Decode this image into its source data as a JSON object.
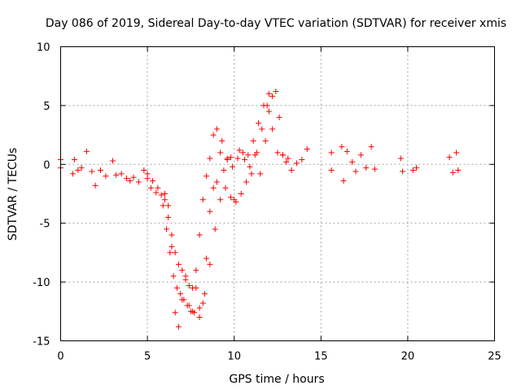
{
  "chart_data": {
    "type": "scatter",
    "title": "Day 086 of 2019, Sidereal Day-to-day VTEC variation (SDTVAR) for receiver xmis",
    "xlabel": "GPS time / hours",
    "ylabel": "SDTVAR / TECUs",
    "xlim": [
      0,
      25
    ],
    "ylim": [
      -15,
      10
    ],
    "xticks": [
      0,
      5,
      10,
      15,
      20,
      25
    ],
    "yticks": [
      10,
      5,
      0,
      -5,
      -10,
      -15
    ],
    "grid": true,
    "marker": "+",
    "colors": {
      "series": "#ff0000",
      "grid": "#a0a0a0",
      "frame": "#000000"
    },
    "series": [
      {
        "name": "SDTVAR",
        "x": [
          0.0,
          0.0,
          0.7,
          0.8,
          1.0,
          1.2,
          1.5,
          1.8,
          2.0,
          2.3,
          2.6,
          3.0,
          3.2,
          3.5,
          3.8,
          4.0,
          4.2,
          4.5,
          4.8,
          5.0,
          5.2,
          5.5,
          5.8,
          6.0,
          6.2,
          6.4,
          6.6,
          6.8,
          7.0,
          7.2,
          7.4,
          7.6,
          7.8,
          8.0,
          8.2,
          8.4,
          8.6,
          8.8,
          9.0,
          9.2,
          9.4,
          9.6,
          9.8,
          10.0,
          10.3,
          10.6,
          10.9,
          11.2,
          11.5,
          11.8,
          12.0,
          12.2,
          12.4,
          12.6,
          12.8,
          13.0,
          13.3,
          13.6,
          13.9,
          14.2,
          15.6,
          15.6,
          16.2,
          16.3,
          16.5,
          16.8,
          17.0,
          17.3,
          17.6,
          17.9,
          18.1,
          19.6,
          19.7,
          20.3,
          20.5,
          22.4,
          22.6,
          22.8,
          22.9,
          5.0,
          5.3,
          5.6,
          5.9,
          6.1,
          6.3,
          6.5,
          6.7,
          6.9,
          7.1,
          7.3,
          7.5,
          7.7,
          8.0,
          8.3,
          8.6,
          8.9,
          9.2,
          9.5,
          9.8,
          10.1,
          10.4,
          10.7,
          11.0,
          11.3,
          11.6,
          11.9,
          12.2,
          12.5,
          12.8,
          13.1,
          6.0,
          6.2,
          6.4,
          6.6,
          6.8,
          7.0,
          7.2,
          7.4,
          7.6,
          7.8,
          8.0,
          8.2,
          8.4,
          8.6,
          8.8,
          9.0,
          9.3,
          9.6,
          9.9,
          10.2,
          10.5,
          10.8,
          11.1,
          11.4,
          11.7,
          12.0
        ],
        "y": [
          0.4,
          -0.3,
          -0.8,
          0.4,
          -0.5,
          -0.3,
          1.1,
          -0.6,
          -1.8,
          -0.5,
          -1.0,
          0.3,
          -0.9,
          -0.8,
          -1.2,
          -1.4,
          -1.1,
          -1.5,
          -0.5,
          -0.8,
          -2.0,
          -2.4,
          -2.6,
          -3.0,
          -3.5,
          -7.0,
          -12.6,
          -13.8,
          -11.5,
          -9.5,
          -12.0,
          -12.5,
          -10.5,
          -13.0,
          -11.8,
          -8.0,
          -4.0,
          -2.0,
          -1.5,
          1.0,
          -0.5,
          0.4,
          0.6,
          -3.0,
          1.2,
          0.4,
          -0.2,
          0.8,
          -0.8,
          2.0,
          4.5,
          5.8,
          6.2,
          4.0,
          0.8,
          0.2,
          -0.5,
          0.1,
          0.4,
          1.3,
          1.0,
          -0.5,
          1.5,
          -1.4,
          1.1,
          0.2,
          -0.6,
          0.8,
          -0.3,
          1.5,
          -0.4,
          0.5,
          -0.6,
          -0.5,
          -0.3,
          0.6,
          -0.7,
          1.0,
          -0.5,
          -1.2,
          -1.4,
          -2.0,
          -3.5,
          -5.5,
          -7.5,
          -9.5,
          -10.5,
          -11.0,
          -11.5,
          -12.0,
          -12.5,
          -12.6,
          -12.2,
          -11.0,
          -8.5,
          -5.5,
          -3.0,
          -2.0,
          -2.8,
          -3.2,
          -2.5,
          -1.5,
          -0.8,
          1.0,
          3.0,
          5.0,
          3.0,
          1.0,
          0.8,
          0.5,
          -2.5,
          -4.5,
          -6.0,
          -7.5,
          -8.5,
          -9.0,
          -9.8,
          -10.3,
          -10.5,
          -9.0,
          -6.0,
          -3.0,
          -1.0,
          0.5,
          2.5,
          3.0,
          2.0,
          0.5,
          -0.2,
          0.5,
          1.0,
          0.8,
          2.0,
          3.5,
          5.0,
          6.0
        ]
      }
    ]
  }
}
